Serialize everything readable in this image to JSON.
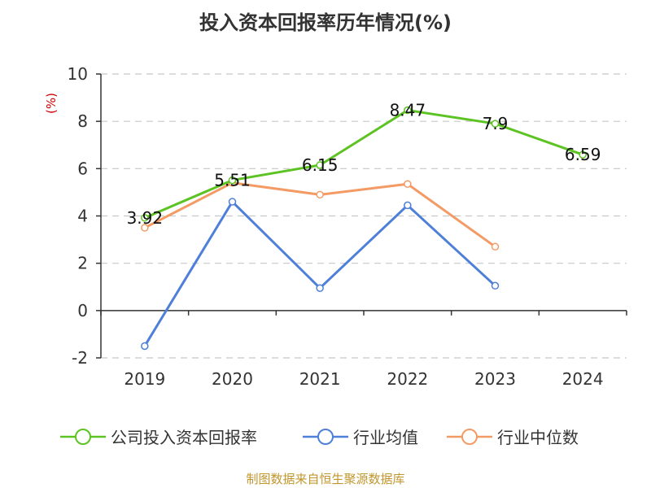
{
  "chart_data": {
    "type": "line",
    "title": "投入资本回报率历年情况(%)",
    "ylabel": "(%)",
    "categories": [
      "2019",
      "2020",
      "2021",
      "2022",
      "2023",
      "2024"
    ],
    "ylim": [
      -2,
      10
    ],
    "yticks": [
      -2,
      0,
      2,
      4,
      6,
      8,
      10
    ],
    "grid": true,
    "legend_position": "bottom",
    "series": [
      {
        "name": "公司投入资本回报率",
        "color": "#5cc323",
        "values": [
          3.92,
          5.51,
          6.15,
          8.47,
          7.9,
          6.59
        ],
        "labeled": true,
        "labels": [
          "3.92",
          "5.51",
          "6.15",
          "8.47",
          "7.9",
          "6.59"
        ]
      },
      {
        "name": "行业均值",
        "color": "#4e7fd9",
        "values": [
          -1.5,
          4.6,
          0.95,
          4.45,
          1.05,
          null
        ],
        "labeled": false
      },
      {
        "name": "行业中位数",
        "color": "#f39a65",
        "values": [
          3.5,
          5.4,
          4.9,
          5.35,
          2.7,
          null
        ],
        "labeled": false
      }
    ]
  },
  "source_note": "制图数据来自恒生聚源数据库"
}
